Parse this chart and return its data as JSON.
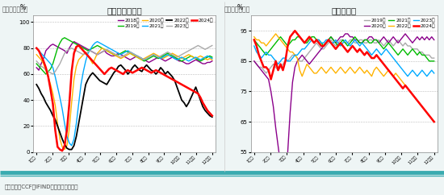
{
  "chart1_title": "江浙织机开工率",
  "chart1_label": "图：织造开工率",
  "chart1_ylabel": "%",
  "chart1_ylim": [
    0,
    105
  ],
  "chart1_yticks": [
    0,
    20,
    40,
    60,
    80,
    100
  ],
  "chart2_title": "聚酯开工率",
  "chart2_label": "图：聚酯开工率",
  "chart2_ylabel": "%",
  "chart2_ylim": [
    55,
    100
  ],
  "chart2_yticks": [
    55,
    65,
    75,
    85,
    95
  ],
  "footer": "资料来源：CCF、IFIND、新湖期货研究所",
  "month_labels": [
    "1月初",
    "2月初",
    "3月初",
    "4月初",
    "5月初",
    "6月初",
    "7月初",
    "8月初",
    "9月初",
    "10月初",
    "11月初",
    "12月初"
  ],
  "chart1_series_order": [
    "2018年",
    "2019年",
    "2020年",
    "2021年",
    "2022年",
    "2023年",
    "2024年"
  ],
  "chart1_colors": [
    "#8B008B",
    "#00BB00",
    "#FFB300",
    "#00AAFF",
    "#000000",
    "#AAAAAA",
    "#FF0000"
  ],
  "chart1_linewidths": [
    1.0,
    1.0,
    1.0,
    1.0,
    1.3,
    1.0,
    1.8
  ],
  "chart2_series_order": [
    "2019年",
    "2020年",
    "2021年",
    "2022年",
    "2023年",
    "2024年"
  ],
  "chart2_colors": [
    "#AAAAAA",
    "#8B008B",
    "#00BB00",
    "#FFB300",
    "#00AAFF",
    "#FF0000"
  ],
  "chart2_linewidths": [
    1.0,
    1.0,
    1.0,
    1.0,
    1.0,
    1.8
  ],
  "chart1_data": {
    "2018年": [
      65,
      63,
      68,
      72,
      78,
      80,
      82,
      83,
      82,
      81,
      80,
      79,
      78,
      76,
      80,
      83,
      85,
      84,
      83,
      82,
      81,
      80,
      79,
      78,
      77,
      76,
      75,
      76,
      77,
      78,
      76,
      75,
      74,
      74,
      75,
      76,
      75,
      74,
      73,
      72,
      71,
      72,
      73,
      74,
      73,
      72,
      71,
      70,
      69,
      70,
      71,
      72,
      73,
      72,
      71,
      70,
      71,
      72,
      73,
      72,
      71,
      70,
      70,
      69,
      68,
      68,
      69,
      70,
      71,
      70,
      69,
      68,
      68,
      69,
      69,
      70
    ],
    "2019年": [
      68,
      66,
      64,
      62,
      60,
      62,
      64,
      68,
      74,
      80,
      84,
      87,
      88,
      87,
      86,
      85,
      84,
      83,
      82,
      81,
      80,
      79,
      78,
      79,
      80,
      81,
      82,
      81,
      80,
      79,
      78,
      77,
      76,
      75,
      74,
      75,
      76,
      77,
      78,
      77,
      76,
      75,
      74,
      73,
      72,
      71,
      70,
      71,
      72,
      73,
      74,
      73,
      72,
      73,
      74,
      75,
      76,
      75,
      74,
      73,
      72,
      71,
      70,
      71,
      72,
      73,
      74,
      73,
      72,
      71,
      70,
      71,
      72,
      73,
      74,
      73
    ],
    "2020年": [
      75,
      73,
      71,
      68,
      63,
      58,
      52,
      45,
      36,
      22,
      10,
      4,
      2,
      5,
      18,
      38,
      56,
      66,
      71,
      73,
      75,
      77,
      74,
      71,
      68,
      72,
      76,
      78,
      80,
      79,
      78,
      77,
      76,
      75,
      74,
      73,
      72,
      73,
      74,
      75,
      76,
      75,
      74,
      73,
      72,
      71,
      72,
      73,
      74,
      75,
      76,
      75,
      74,
      73,
      72,
      73,
      74,
      75,
      76,
      75,
      74,
      73,
      72,
      73,
      74,
      75,
      74,
      73,
      72,
      73,
      74,
      73,
      72,
      71,
      72,
      71
    ],
    "2021年": [
      80,
      78,
      76,
      74,
      72,
      70,
      68,
      65,
      58,
      50,
      42,
      33,
      22,
      12,
      7,
      5,
      10,
      22,
      37,
      52,
      62,
      70,
      76,
      79,
      82,
      84,
      85,
      84,
      83,
      82,
      81,
      80,
      79,
      78,
      77,
      76,
      75,
      76,
      77,
      78,
      77,
      76,
      75,
      74,
      73,
      72,
      71,
      72,
      73,
      74,
      75,
      74,
      73,
      72,
      73,
      74,
      75,
      74,
      73,
      72,
      71,
      72,
      73,
      72,
      71,
      70,
      71,
      72,
      73,
      72,
      71,
      72,
      73,
      74,
      73,
      72
    ],
    "2022年": [
      52,
      49,
      45,
      42,
      38,
      35,
      32,
      28,
      25,
      20,
      15,
      10,
      6,
      3,
      2,
      2,
      5,
      12,
      22,
      32,
      42,
      52,
      56,
      59,
      61,
      59,
      57,
      55,
      54,
      53,
      52,
      55,
      58,
      61,
      63,
      66,
      67,
      65,
      63,
      60,
      62,
      65,
      67,
      65,
      63,
      62,
      65,
      67,
      65,
      63,
      62,
      60,
      62,
      65,
      63,
      60,
      62,
      60,
      58,
      55,
      50,
      45,
      40,
      38,
      35,
      38,
      42,
      46,
      50,
      45,
      40,
      35,
      32,
      30,
      28,
      27
    ],
    "2023年": [
      70,
      68,
      66,
      65,
      63,
      62,
      61,
      60,
      62,
      65,
      68,
      72,
      76,
      78,
      79,
      80,
      79,
      78,
      77,
      76,
      75,
      76,
      77,
      78,
      77,
      76,
      75,
      76,
      77,
      78,
      79,
      78,
      77,
      76,
      75,
      74,
      73,
      74,
      75,
      76,
      77,
      76,
      75,
      74,
      73,
      72,
      71,
      72,
      73,
      74,
      75,
      74,
      73,
      74,
      75,
      76,
      77,
      76,
      75,
      74,
      73,
      74,
      75,
      76,
      77,
      78,
      79,
      80,
      81,
      82,
      81,
      80,
      79,
      80,
      81,
      82
    ],
    "2024年": [
      80,
      78,
      74,
      70,
      65,
      58,
      48,
      37,
      17,
      4,
      2,
      1,
      5,
      17,
      37,
      62,
      76,
      81,
      82,
      80,
      78,
      76,
      74,
      72,
      70,
      68,
      66,
      64,
      62,
      60,
      62,
      64,
      65,
      64,
      63,
      62,
      61,
      60,
      62,
      63,
      62,
      61,
      62,
      63,
      64,
      65,
      64,
      63,
      62,
      61,
      62,
      63,
      62,
      61,
      60,
      59,
      58,
      57,
      56,
      55,
      54,
      53,
      52,
      51,
      50,
      49,
      48,
      47,
      46,
      45,
      42,
      38,
      35,
      32,
      30,
      28
    ]
  },
  "chart2_data": {
    "2019年": [
      85,
      84,
      83,
      83,
      82,
      81,
      82,
      83,
      84,
      83,
      82,
      83,
      84,
      85,
      85,
      86,
      87,
      87,
      86,
      85,
      85,
      86,
      87,
      88,
      89,
      90,
      91,
      90,
      89,
      89,
      90,
      91,
      92,
      91,
      90,
      91,
      92,
      92,
      91,
      91,
      92,
      92,
      91,
      91,
      92,
      92,
      91,
      91,
      92,
      92,
      91,
      91,
      92,
      91,
      90,
      91,
      92,
      91,
      90,
      91,
      92,
      91,
      90,
      91,
      90,
      90,
      89,
      89,
      89,
      88,
      88,
      87,
      87,
      87,
      86,
      86
    ],
    "2020年": [
      85,
      84,
      83,
      82,
      81,
      80,
      79,
      75,
      70,
      63,
      57,
      51,
      46,
      41,
      55,
      68,
      78,
      83,
      85,
      86,
      87,
      86,
      85,
      84,
      85,
      86,
      87,
      88,
      89,
      90,
      91,
      92,
      93,
      92,
      91,
      92,
      93,
      93,
      94,
      94,
      93,
      93,
      92,
      92,
      91,
      91,
      92,
      92,
      93,
      93,
      92,
      92,
      91,
      92,
      93,
      92,
      91,
      92,
      93,
      92,
      91,
      92,
      93,
      94,
      93,
      92,
      91,
      92,
      93,
      92,
      93,
      92,
      93,
      92,
      93,
      92
    ],
    "2021年": [
      92,
      91,
      90,
      89,
      88,
      87,
      88,
      89,
      90,
      91,
      92,
      93,
      92,
      91,
      90,
      91,
      92,
      92,
      93,
      93,
      92,
      91,
      91,
      92,
      93,
      93,
      92,
      92,
      91,
      90,
      91,
      92,
      93,
      92,
      91,
      90,
      91,
      92,
      91,
      90,
      91,
      92,
      93,
      92,
      91,
      91,
      92,
      92,
      91,
      91,
      92,
      92,
      91,
      90,
      89,
      90,
      91,
      90,
      89,
      88,
      87,
      88,
      89,
      88,
      87,
      88,
      89,
      88,
      87,
      88,
      87,
      87,
      86,
      85,
      85,
      85
    ],
    "2022年": [
      93,
      92,
      92,
      91,
      91,
      90,
      91,
      92,
      93,
      94,
      93,
      92,
      91,
      90,
      89,
      88,
      88,
      87,
      86,
      82,
      80,
      82,
      84,
      83,
      82,
      81,
      81,
      82,
      83,
      82,
      81,
      82,
      83,
      82,
      81,
      82,
      83,
      82,
      81,
      82,
      83,
      82,
      81,
      82,
      83,
      82,
      81,
      82,
      81,
      80,
      82,
      83,
      82,
      81,
      80,
      81,
      82,
      81,
      80,
      81,
      80,
      79,
      78,
      77,
      76,
      75,
      74,
      73,
      72,
      71,
      70,
      69,
      68,
      67,
      66,
      65
    ],
    "2023年": [
      90,
      88,
      87,
      86,
      87,
      88,
      87,
      87,
      86,
      85,
      84,
      85,
      86,
      86,
      85,
      85,
      86,
      87,
      87,
      88,
      89,
      89,
      90,
      91,
      92,
      91,
      92,
      92,
      91,
      91,
      92,
      92,
      91,
      91,
      92,
      91,
      90,
      91,
      92,
      91,
      90,
      91,
      92,
      91,
      90,
      91,
      90,
      89,
      88,
      87,
      88,
      89,
      88,
      87,
      88,
      89,
      88,
      87,
      86,
      85,
      84,
      83,
      82,
      81,
      80,
      81,
      82,
      81,
      80,
      81,
      82,
      81,
      80,
      81,
      82,
      81
    ],
    "2024年": [
      92,
      90,
      87,
      85,
      83,
      83,
      82,
      79,
      82,
      85,
      82,
      84,
      82,
      85,
      90,
      93,
      94,
      95,
      94,
      93,
      92,
      91,
      92,
      93,
      92,
      91,
      92,
      91,
      90,
      90,
      91,
      92,
      91,
      90,
      89,
      90,
      91,
      90,
      89,
      88,
      89,
      90,
      89,
      88,
      89,
      88,
      87,
      88,
      87,
      86,
      86,
      87,
      86,
      85,
      84,
      83,
      82,
      81,
      80,
      79,
      78,
      77,
      76,
      77,
      76,
      75,
      74,
      73,
      72,
      71,
      70,
      69,
      68,
      67,
      66,
      65
    ]
  },
  "bg_color": "#EEF5F5",
  "plot_bg": "#FFFFFF",
  "grid_color": "#AAAAAA",
  "border_color": "#888888",
  "teal_color": "#3AABB0",
  "header_text_color": "#555555"
}
